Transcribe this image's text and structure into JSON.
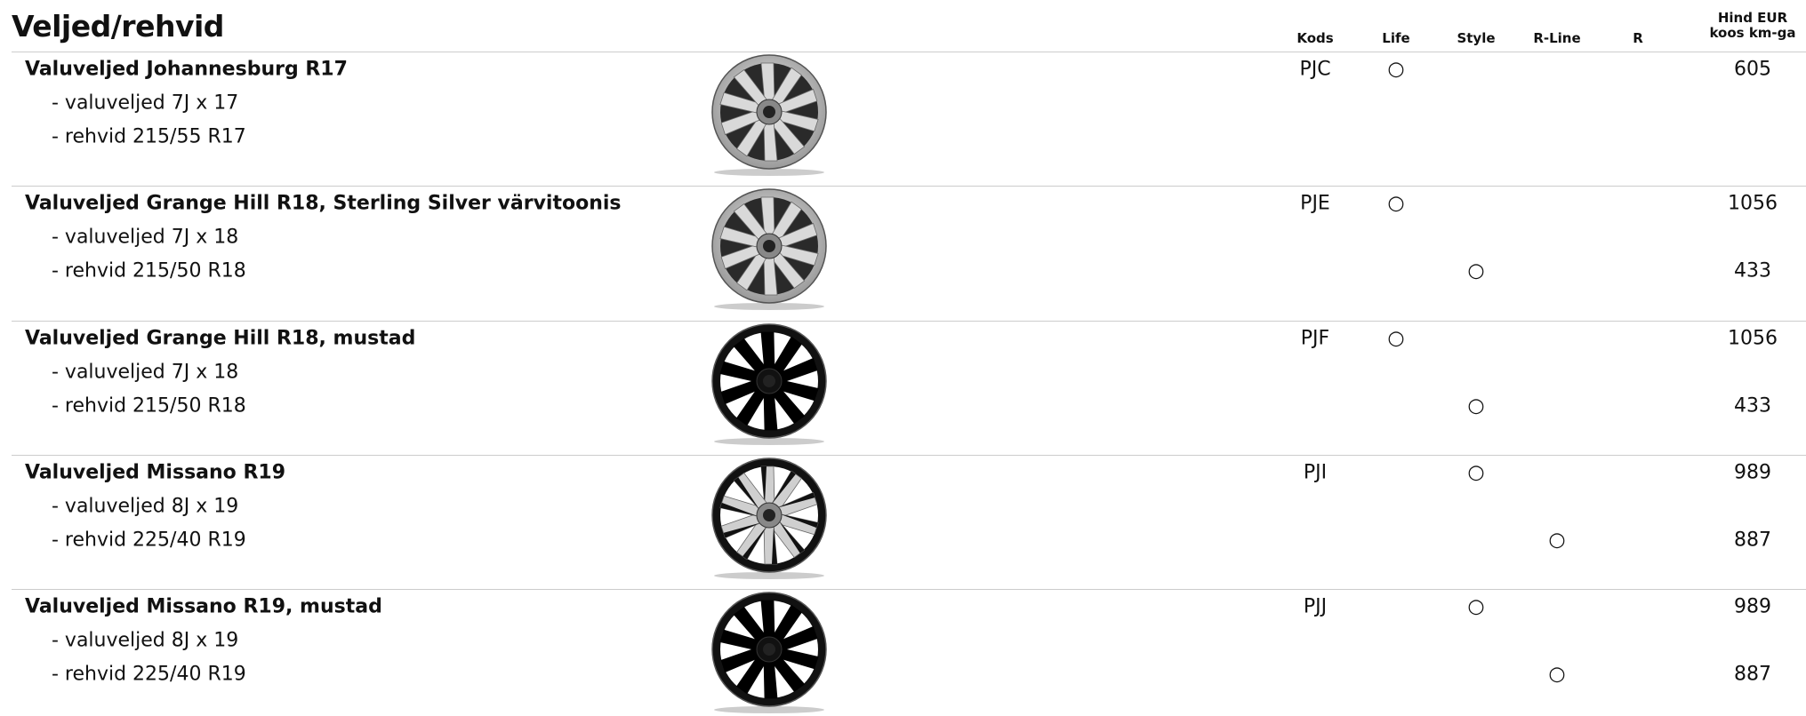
{
  "title": "Veljed/rehvid",
  "columns": [
    "Kods",
    "Life",
    "Style",
    "R-Line",
    "R"
  ],
  "price_header": [
    "Hind EUR",
    "koos km-ga"
  ],
  "rows": [
    {
      "lines": [
        {
          "text": "Valuveljed Johannesburg R17",
          "cells": [
            "PJC",
            "○",
            null,
            null,
            null
          ],
          "price": 605
        },
        {
          "text": "- valuveljed 7J x 17"
        },
        {
          "text": "- rehvid 215/55 R17"
        }
      ]
    },
    {
      "lines": [
        {
          "text": "Valuveljed Grange Hill R18, Sterling Silver värvitoonis",
          "cells": [
            "PJE",
            "○",
            null,
            null,
            null
          ],
          "price": 1056
        },
        {
          "text": "- valuveljed 7J x 18"
        },
        {
          "text": "- rehvid 215/50 R18",
          "cells": [
            null,
            null,
            "○",
            null,
            null
          ],
          "price": 433
        }
      ]
    },
    {
      "lines": [
        {
          "text": "Valuveljed Grange Hill R18, mustad",
          "cells": [
            "PJF",
            "○",
            null,
            null,
            null
          ],
          "price": 1056
        },
        {
          "text": "- valuveljed 7J x 18"
        },
        {
          "text": "- rehvid 215/50 R18",
          "cells": [
            null,
            null,
            "○",
            null,
            null
          ],
          "price": 433
        }
      ]
    },
    {
      "lines": [
        {
          "text": "Valuveljed Missano R19",
          "cells": [
            "PJI",
            null,
            "○",
            null,
            null
          ],
          "price": 989
        },
        {
          "text": "- valuveljed 8J x 19"
        },
        {
          "text": "- rehvid 225/40 R19",
          "cells": [
            null,
            null,
            null,
            "○",
            null
          ],
          "price": 887
        }
      ]
    },
    {
      "lines": [
        {
          "text": "Valuveljed Missano R19, mustad",
          "cells": [
            "PJJ",
            null,
            "○",
            null,
            null
          ],
          "price": 989
        },
        {
          "text": "- valuveljed 8J x 19"
        },
        {
          "text": "- rehvid 225/40 R19",
          "cells": [
            null,
            null,
            null,
            "○",
            null
          ],
          "price": 887
        }
      ]
    }
  ]
}
